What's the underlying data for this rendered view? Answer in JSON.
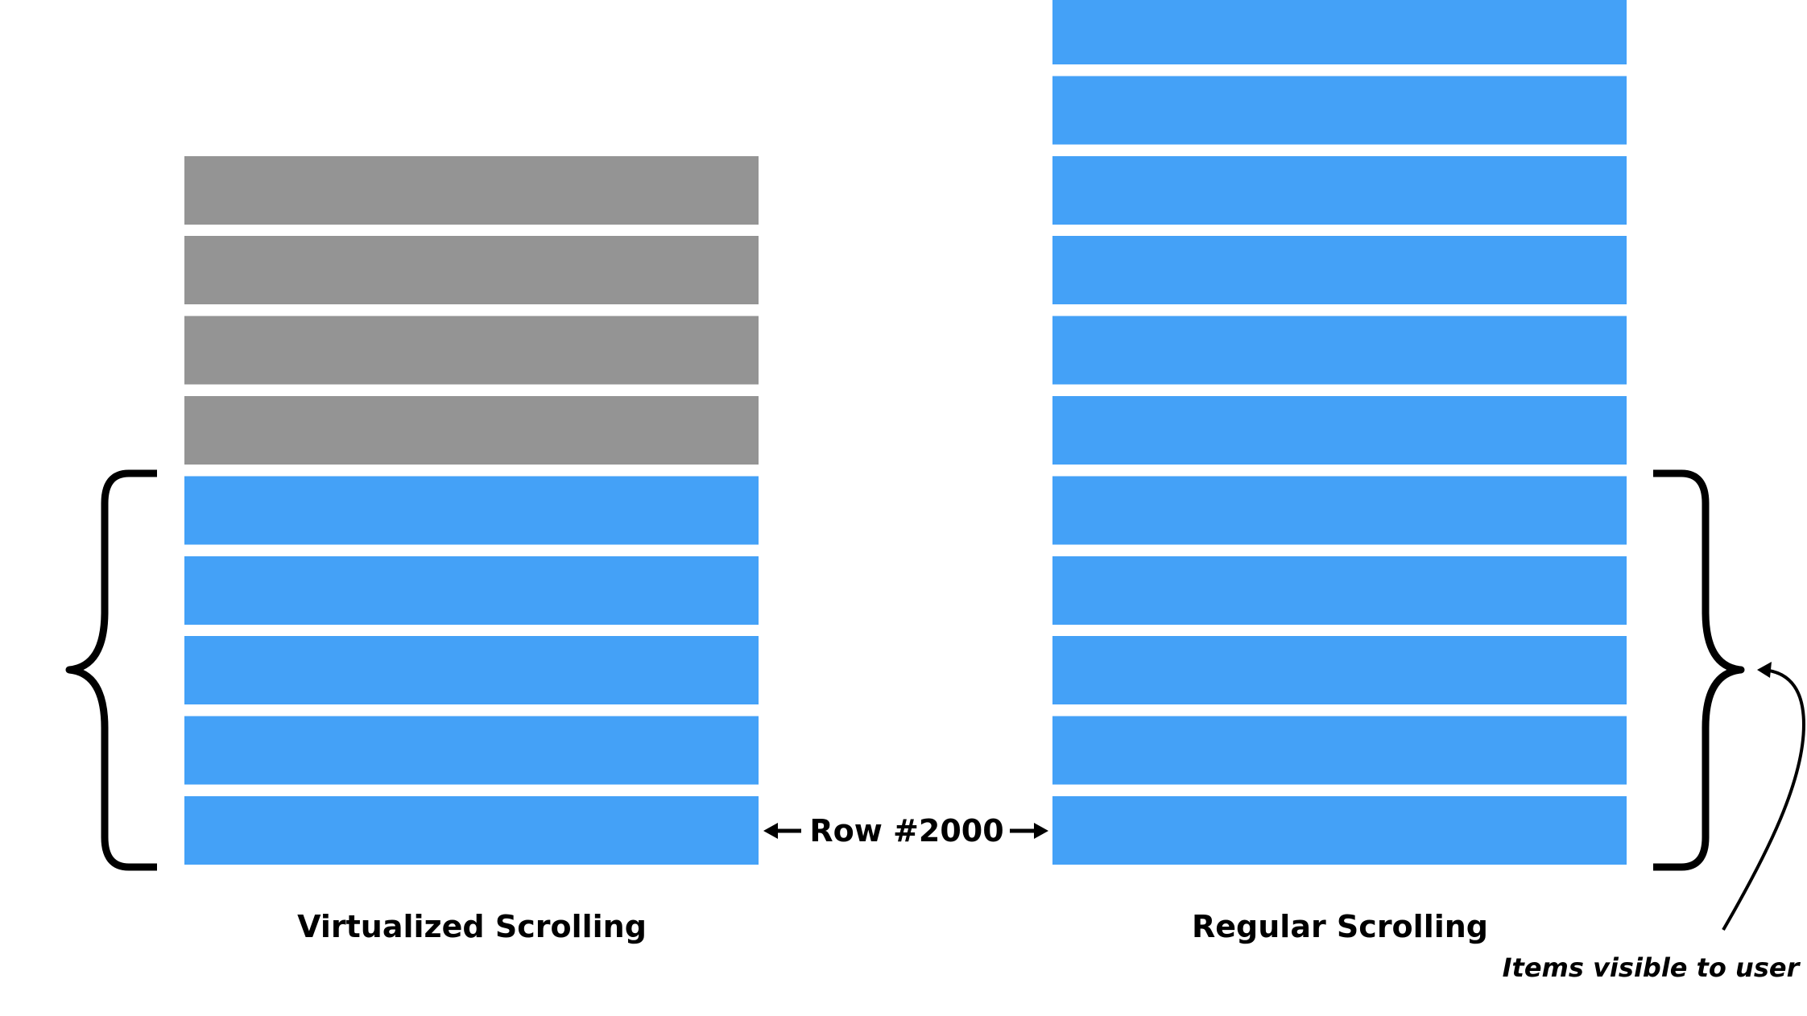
{
  "colors": {
    "visible_row": "#44a1f7",
    "offscreen_row": "#949494",
    "background": "#ffffff",
    "ink": "#000000"
  },
  "virtualized": {
    "caption": "Virtualized Scrolling",
    "rows": [
      "offscreen",
      "offscreen",
      "offscreen",
      "offscreen",
      "visible",
      "visible",
      "visible",
      "visible",
      "visible"
    ]
  },
  "regular": {
    "caption": "Regular Scrolling",
    "rows": [
      "visible",
      "visible",
      "visible",
      "visible",
      "visible",
      "visible",
      "visible",
      "visible",
      "visible",
      "visible",
      "visible"
    ]
  },
  "row_marker": {
    "label": "Row #2000"
  },
  "annotation": {
    "text": "Items visible to user"
  }
}
